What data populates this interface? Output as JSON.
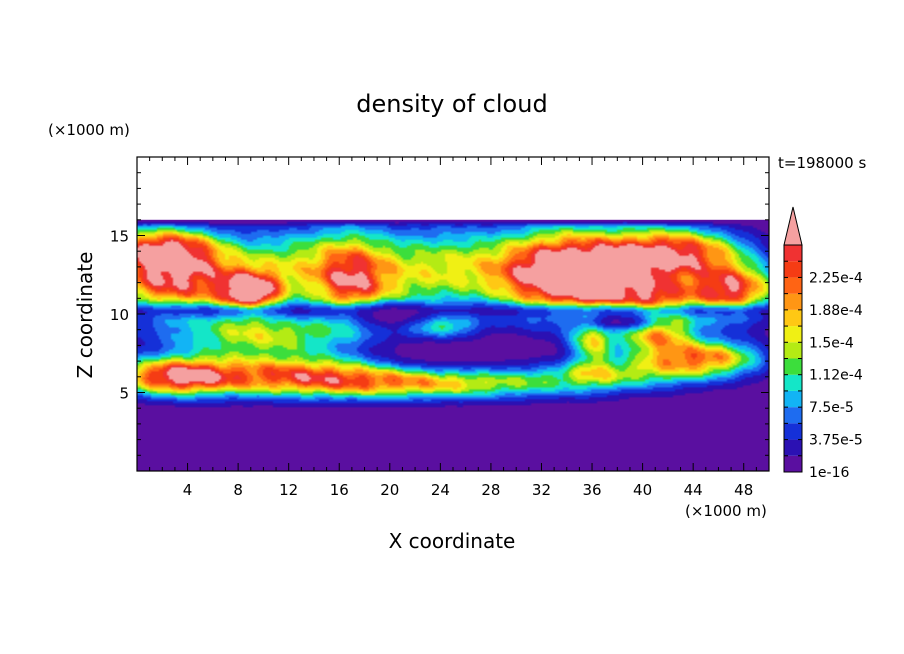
{
  "chart_data": {
    "type": "heatmap",
    "title": "density of cloud",
    "time_label": "t=198000 s",
    "xlabel": "X coordinate",
    "ylabel": "Z coordinate",
    "x_unit": "(×1000 m)",
    "y_unit": "(×1000 m)",
    "xlim": [
      0,
      50
    ],
    "ylim": [
      0,
      20
    ],
    "x_ticks": [
      "4",
      "8",
      "12",
      "16",
      "20",
      "24",
      "28",
      "32",
      "36",
      "40",
      "44",
      "48"
    ],
    "y_ticks": [
      "5",
      "10",
      "15"
    ],
    "x_tick_values": [
      4,
      8,
      12,
      16,
      20,
      24,
      28,
      32,
      36,
      40,
      44,
      48
    ],
    "y_tick_values": [
      5,
      10,
      15
    ],
    "colorbar": {
      "labels": [
        "2.25e-4",
        "1.88e-4",
        "1.5e-4",
        "1.12e-4",
        "7.5e-5",
        "3.75e-5",
        "1e-16"
      ],
      "label_values": [
        0.000225,
        0.000188,
        0.00015,
        0.000112,
        7.5e-05,
        3.75e-05,
        1e-16
      ],
      "levels": [
        1e-16,
        1.875e-05,
        3.75e-05,
        5.625e-05,
        7.5e-05,
        9.375e-05,
        0.0001125,
        0.00013125,
        0.00015,
        0.00016875,
        0.0001875,
        0.00020625,
        0.000225,
        0.00024375
      ],
      "colors": [
        "#5a0fa0",
        "#2b11b3",
        "#1530d8",
        "#1e6cf0",
        "#12b4f5",
        "#14e6c8",
        "#3cde3c",
        "#b4eb14",
        "#f0f014",
        "#ffc814",
        "#ff9614",
        "#ff6414",
        "#f53c14",
        "#f03232"
      ],
      "extend_color": "#f5a0a0"
    },
    "field": {
      "x_range": [
        0,
        50
      ],
      "z_range": [
        0,
        16
      ],
      "blobs": [
        {
          "x": 3,
          "z": 12.3,
          "sx": 4.0,
          "sz": 1.6,
          "v": 0.00026
        },
        {
          "x": 9,
          "z": 11.3,
          "sx": 1.6,
          "sz": 0.9,
          "v": 0.00025
        },
        {
          "x": 2,
          "z": 14.2,
          "sx": 3.0,
          "sz": 0.9,
          "v": 0.00019
        },
        {
          "x": 13,
          "z": 13.0,
          "sx": 3.5,
          "sz": 1.8,
          "v": 0.00013
        },
        {
          "x": 17,
          "z": 12.0,
          "sx": 2.0,
          "sz": 2.0,
          "v": 0.00017
        },
        {
          "x": 21,
          "z": 12.5,
          "sx": 3.0,
          "sz": 2.0,
          "v": 0.00011
        },
        {
          "x": 26,
          "z": 13.0,
          "sx": 3.0,
          "sz": 1.8,
          "v": 0.0001
        },
        {
          "x": 33,
          "z": 12.6,
          "sx": 3.5,
          "sz": 1.8,
          "v": 0.00026
        },
        {
          "x": 38,
          "z": 12.5,
          "sx": 4.0,
          "sz": 1.8,
          "v": 0.00021
        },
        {
          "x": 43,
          "z": 14.0,
          "sx": 3.5,
          "sz": 1.0,
          "v": 0.0002
        },
        {
          "x": 47,
          "z": 11.5,
          "sx": 2.5,
          "sz": 1.2,
          "v": 0.00025
        },
        {
          "x": 41,
          "z": 9.5,
          "sx": 2.0,
          "sz": 1.5,
          "v": 0.00022
        },
        {
          "x": 36,
          "z": 8.5,
          "sx": 1.2,
          "sz": 1.5,
          "v": 0.00015
        },
        {
          "x": 45,
          "z": 7.2,
          "sx": 3.0,
          "sz": 0.8,
          "v": 0.0002
        },
        {
          "x": 24,
          "z": 9.2,
          "sx": 2.0,
          "sz": 0.7,
          "v": 0.00012
        },
        {
          "x": 10,
          "z": 8.6,
          "sx": 5.0,
          "sz": 0.9,
          "v": 0.00014
        },
        {
          "x": 13,
          "z": 6.2,
          "sx": 8.0,
          "sz": 0.9,
          "v": 0.00019
        },
        {
          "x": 24,
          "z": 5.6,
          "sx": 10.0,
          "sz": 0.7,
          "v": 0.00014
        },
        {
          "x": 3,
          "z": 6.0,
          "sx": 3.0,
          "sz": 0.8,
          "v": 0.0002
        },
        {
          "x": 38,
          "z": 6.3,
          "sx": 4.0,
          "sz": 0.6,
          "v": 9e-05
        }
      ],
      "voids": [
        {
          "x": 24,
          "z": 7.5,
          "sx": 5.0,
          "sz": 0.9
        },
        {
          "x": 20,
          "z": 9.8,
          "sx": 2.5,
          "sz": 0.6
        },
        {
          "x": 38,
          "z": 9.5,
          "sx": 3.0,
          "sz": 0.5
        }
      ]
    }
  }
}
